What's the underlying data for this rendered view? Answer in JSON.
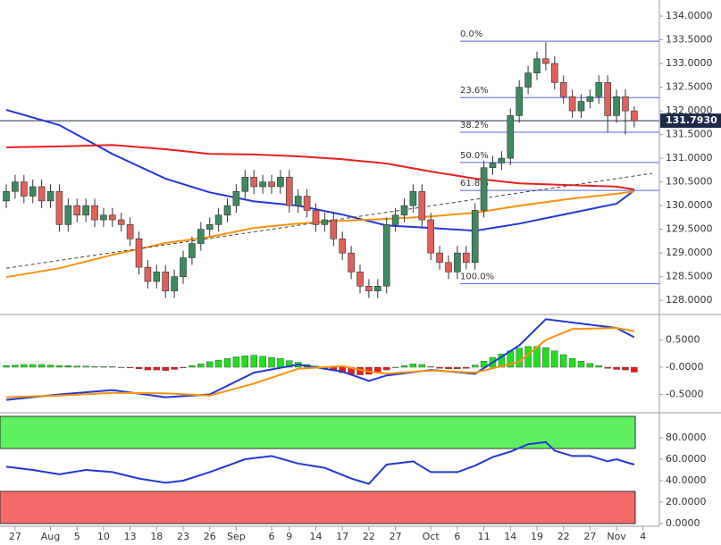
{
  "chart_data": [
    {
      "type": "candlestick",
      "up_color": "#3d8a5f",
      "down_color": "#e0605a",
      "xlim": [
        -0.71,
        73.84
      ],
      "ylim": [
        127.74,
        134.34
      ],
      "xticks": [
        {
          "value": 1,
          "label": "27"
        },
        {
          "value": 5,
          "label": "Aug"
        },
        {
          "value": 8,
          "label": "5"
        },
        {
          "value": 11,
          "label": "10"
        },
        {
          "value": 14,
          "label": "13"
        },
        {
          "value": 17,
          "label": "18"
        },
        {
          "value": 20,
          "label": "23"
        },
        {
          "value": 23,
          "label": "26"
        },
        {
          "value": 26,
          "label": "Sep"
        },
        {
          "value": 30,
          "label": "6"
        },
        {
          "value": 32,
          "label": "9"
        },
        {
          "value": 35,
          "label": "14"
        },
        {
          "value": 38,
          "label": "17"
        },
        {
          "value": 41,
          "label": "22"
        },
        {
          "value": 44,
          "label": "27"
        },
        {
          "value": 48,
          "label": "Oct"
        },
        {
          "value": 51,
          "label": "6"
        },
        {
          "value": 54,
          "label": "11"
        },
        {
          "value": 57,
          "label": "14"
        },
        {
          "value": 60,
          "label": "19"
        },
        {
          "value": 63,
          "label": "22"
        },
        {
          "value": 66,
          "label": "27"
        },
        {
          "value": 69,
          "label": "Nov"
        },
        {
          "value": 72,
          "label": "4"
        }
      ],
      "yticks": [
        {
          "value": 128,
          "label": "128.0000"
        },
        {
          "value": 128.5,
          "label": "128.5000"
        },
        {
          "value": 129,
          "label": "129.0000"
        },
        {
          "value": 129.5,
          "label": "129.5000"
        },
        {
          "value": 130,
          "label": "130.0000"
        },
        {
          "value": 130.5,
          "label": "130.5000"
        },
        {
          "value": 131,
          "label": "131.0000"
        },
        {
          "value": 131.5,
          "label": "131.5000"
        },
        {
          "value": 132,
          "label": "132.0000"
        },
        {
          "value": 132.5,
          "label": "132.5000"
        },
        {
          "value": 133,
          "label": "133.0000"
        },
        {
          "value": 133.5,
          "label": "133.5000"
        },
        {
          "value": 134,
          "label": "134.0000"
        }
      ],
      "candles": [
        [
          130.1,
          130.45,
          129.95,
          130.3
        ],
        [
          130.3,
          130.65,
          130.15,
          130.5
        ],
        [
          130.5,
          130.65,
          130.05,
          130.2
        ],
        [
          130.2,
          130.55,
          130.05,
          130.4
        ],
        [
          130.4,
          130.55,
          129.95,
          130.1
        ],
        [
          130.1,
          130.45,
          129.95,
          130.3
        ],
        [
          130.3,
          130.45,
          129.45,
          129.6
        ],
        [
          129.6,
          130.15,
          129.45,
          130.0
        ],
        [
          130.0,
          130.15,
          129.65,
          129.8
        ],
        [
          129.8,
          130.15,
          129.65,
          130.0
        ],
        [
          130.0,
          130.15,
          129.55,
          129.7
        ],
        [
          129.7,
          129.95,
          129.55,
          129.8
        ],
        [
          129.8,
          129.95,
          129.55,
          129.7
        ],
        [
          129.7,
          129.85,
          129.45,
          129.6
        ],
        [
          129.6,
          129.75,
          129.15,
          129.3
        ],
        [
          129.3,
          129.45,
          128.55,
          128.7
        ],
        [
          128.7,
          128.85,
          128.25,
          128.4
        ],
        [
          128.4,
          128.75,
          128.25,
          128.6
        ],
        [
          128.6,
          128.75,
          128.05,
          128.2
        ],
        [
          128.2,
          128.65,
          128.05,
          128.5
        ],
        [
          128.5,
          129.05,
          128.35,
          128.9
        ],
        [
          128.9,
          129.35,
          128.75,
          129.2
        ],
        [
          129.2,
          129.65,
          129.05,
          129.5
        ],
        [
          129.5,
          129.75,
          129.35,
          129.6
        ],
        [
          129.6,
          129.95,
          129.45,
          129.8
        ],
        [
          129.8,
          130.15,
          129.65,
          130.0
        ],
        [
          130.0,
          130.45,
          129.85,
          130.3
        ],
        [
          130.3,
          130.75,
          130.15,
          130.6
        ],
        [
          130.6,
          130.75,
          130.25,
          130.4
        ],
        [
          130.4,
          130.65,
          130.25,
          130.5
        ],
        [
          130.5,
          130.65,
          130.25,
          130.4
        ],
        [
          130.4,
          130.75,
          130.25,
          130.6
        ],
        [
          130.6,
          130.75,
          129.85,
          130.0
        ],
        [
          130.0,
          130.35,
          129.85,
          130.2
        ],
        [
          130.2,
          130.35,
          129.75,
          129.9
        ],
        [
          129.9,
          130.05,
          129.45,
          129.6
        ],
        [
          129.6,
          129.85,
          129.45,
          129.7
        ],
        [
          129.7,
          129.85,
          129.15,
          129.3
        ],
        [
          129.3,
          129.45,
          128.85,
          129.0
        ],
        [
          129.0,
          129.15,
          128.45,
          128.6
        ],
        [
          128.6,
          128.75,
          128.15,
          128.3
        ],
        [
          128.3,
          128.45,
          128.05,
          128.2
        ],
        [
          128.2,
          128.45,
          128.05,
          128.3
        ],
        [
          128.3,
          129.75,
          128.15,
          129.6
        ],
        [
          129.6,
          129.95,
          129.45,
          129.8
        ],
        [
          129.8,
          130.15,
          129.65,
          130.0
        ],
        [
          130.0,
          130.45,
          129.85,
          130.3
        ],
        [
          130.3,
          130.45,
          129.55,
          129.7
        ],
        [
          129.7,
          129.85,
          128.85,
          129.0
        ],
        [
          129.0,
          129.15,
          128.65,
          128.8
        ],
        [
          128.8,
          128.95,
          128.45,
          128.6
        ],
        [
          128.6,
          129.15,
          128.45,
          129.0
        ],
        [
          129.0,
          129.15,
          128.65,
          128.8
        ],
        [
          128.8,
          130.05,
          128.65,
          129.9
        ],
        [
          129.9,
          130.95,
          129.75,
          130.8
        ],
        [
          130.8,
          131.05,
          130.65,
          130.9
        ],
        [
          130.9,
          131.15,
          130.75,
          131.0
        ],
        [
          131.0,
          132.05,
          130.85,
          131.9
        ],
        [
          131.9,
          132.65,
          131.75,
          132.5
        ],
        [
          132.5,
          132.95,
          132.35,
          132.8
        ],
        [
          132.8,
          133.25,
          132.65,
          133.1
        ],
        [
          133.1,
          133.45,
          132.85,
          133.0
        ],
        [
          133.0,
          133.15,
          132.45,
          132.6
        ],
        [
          132.6,
          132.75,
          132.15,
          132.3
        ],
        [
          132.3,
          132.45,
          131.85,
          132.0
        ],
        [
          132.0,
          132.35,
          131.85,
          132.2
        ],
        [
          132.2,
          132.45,
          132.05,
          132.3
        ],
        [
          132.3,
          132.75,
          132.15,
          132.6
        ],
        [
          132.6,
          132.75,
          131.55,
          131.9
        ],
        [
          131.9,
          132.45,
          131.75,
          132.3
        ],
        [
          132.3,
          132.45,
          131.5,
          132.0
        ],
        [
          132.0,
          132.1,
          131.65,
          131.79
        ]
      ],
      "series": [
        {
          "color": "#2238d6",
          "x": [
            0,
            6,
            12,
            18,
            23,
            28,
            33,
            38,
            43,
            48,
            53,
            58,
            64,
            69,
            71
          ],
          "values": [
            132.02,
            131.7,
            131.09,
            130.57,
            130.28,
            130.09,
            130.0,
            129.81,
            129.58,
            129.53,
            129.47,
            129.62,
            129.85,
            130.04,
            130.32
          ]
        },
        {
          "color": "#e8201c",
          "x": [
            0,
            6,
            12,
            18,
            23,
            28,
            33,
            38,
            43,
            48,
            53,
            58,
            64,
            69,
            71
          ],
          "values": [
            131.23,
            131.25,
            131.28,
            131.19,
            131.09,
            131.08,
            131.04,
            130.98,
            130.89,
            130.72,
            130.57,
            130.47,
            130.43,
            130.4,
            130.34
          ]
        },
        {
          "color": "#f7920f",
          "x": [
            0,
            6,
            12,
            18,
            23,
            28,
            33,
            38,
            43,
            48,
            53,
            58,
            64,
            69,
            71
          ],
          "values": [
            128.49,
            128.68,
            128.96,
            129.21,
            129.34,
            129.53,
            129.62,
            129.68,
            129.72,
            129.77,
            129.85,
            130.0,
            130.15,
            130.25,
            130.3
          ]
        },
        {
          "color": "#444444",
          "dash": true,
          "x": [
            0,
            73
          ],
          "values": [
            128.68,
            130.68
          ]
        }
      ],
      "fib_color": "#5563e6",
      "fib_levels": [
        {
          "value": 133.47,
          "label": "0.0%"
        },
        {
          "value": 132.28,
          "label": "23.6%"
        },
        {
          "value": 131.55,
          "label": "38.2%"
        },
        {
          "value": 130.91,
          "label": "50.0%"
        },
        {
          "value": 130.32,
          "label": "61.8%"
        },
        {
          "value": 128.35,
          "label": "100.0%"
        }
      ],
      "last_price": {
        "value": 131.793,
        "label": "131.7930"
      }
    },
    {
      "type": "macd",
      "up_color": "#1ee01e",
      "down_color": "#ee1a1a",
      "ylim": [
        -0.803,
        0.918
      ],
      "yticks": [
        {
          "value": 0.5,
          "label": "0.5000"
        },
        {
          "value": 0,
          "label": "-0.0000"
        },
        {
          "value": -0.5,
          "label": "-0.5000"
        }
      ],
      "histogram": [
        0.03,
        0.04,
        0.05,
        0.05,
        0.05,
        0.04,
        0.03,
        0.03,
        0.02,
        0.02,
        0.01,
        0.01,
        0.01,
        0.0,
        -0.01,
        -0.03,
        -0.05,
        -0.05,
        -0.06,
        -0.04,
        -0.01,
        0.03,
        0.06,
        0.1,
        0.13,
        0.16,
        0.19,
        0.21,
        0.22,
        0.2,
        0.18,
        0.16,
        0.12,
        0.09,
        0.05,
        0.02,
        -0.02,
        -0.06,
        -0.1,
        -0.13,
        -0.14,
        -0.13,
        -0.1,
        -0.05,
        0.0,
        0.03,
        0.06,
        0.05,
        0.01,
        -0.02,
        -0.03,
        -0.03,
        -0.02,
        0.04,
        0.11,
        0.18,
        0.24,
        0.3,
        0.35,
        0.38,
        0.38,
        0.36,
        0.3,
        0.23,
        0.16,
        0.11,
        0.07,
        0.03,
        -0.02,
        -0.04,
        -0.05,
        -0.09
      ],
      "series": [
        {
          "color": "#2238d6",
          "x": [
            0,
            6,
            12,
            18,
            23,
            28,
            33,
            38,
            41,
            43,
            48,
            53,
            58,
            61,
            64,
            69,
            71
          ],
          "values": [
            -0.6,
            -0.5,
            -0.42,
            -0.55,
            -0.5,
            -0.1,
            0.05,
            -0.08,
            -0.25,
            -0.15,
            -0.05,
            -0.12,
            0.4,
            0.88,
            0.82,
            0.72,
            0.55
          ]
        },
        {
          "color": "#f7920f",
          "x": [
            0,
            6,
            12,
            18,
            23,
            28,
            33,
            38,
            41,
            43,
            48,
            53,
            58,
            61,
            64,
            69,
            71
          ],
          "values": [
            -0.55,
            -0.52,
            -0.47,
            -0.48,
            -0.52,
            -0.3,
            -0.03,
            0.02,
            -0.08,
            -0.12,
            -0.06,
            -0.1,
            0.1,
            0.5,
            0.7,
            0.72,
            0.66
          ]
        }
      ]
    },
    {
      "type": "rsi",
      "ylim": [
        0,
        100
      ],
      "yticks": [
        {
          "value": 80,
          "label": "80.0000"
        },
        {
          "value": 60,
          "label": "60.0000"
        },
        {
          "value": 40,
          "label": "40.0000"
        },
        {
          "value": 20,
          "label": "20.0000"
        },
        {
          "value": 0,
          "label": "0.0000"
        }
      ],
      "bands": [
        {
          "from": 70,
          "to": 100,
          "color": "#5ef05e"
        },
        {
          "from": 0,
          "to": 30,
          "color": "#f56a6a"
        }
      ],
      "series": [
        {
          "color": "#2238d6",
          "x": [
            0,
            3,
            6,
            9,
            12,
            15,
            18,
            20,
            23,
            27,
            30,
            33,
            36,
            39,
            41,
            43,
            46,
            48,
            51,
            53,
            55,
            57,
            59,
            61,
            62,
            64,
            66,
            68,
            69,
            71
          ],
          "values": [
            53,
            50,
            46,
            50,
            48,
            42,
            38,
            40,
            48,
            60,
            63,
            56,
            52,
            42,
            37,
            55,
            58,
            48,
            48,
            54,
            62,
            67,
            74,
            76,
            68,
            63,
            63,
            58,
            60,
            55
          ]
        }
      ]
    }
  ]
}
